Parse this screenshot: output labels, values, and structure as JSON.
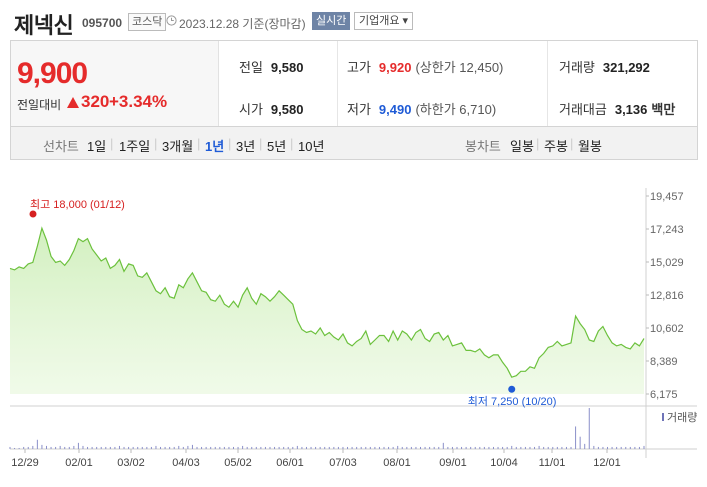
{
  "header": {
    "name": "제넥신",
    "code": "095700",
    "market": "코스닥",
    "date": "2023.12.28 기준(장마감)",
    "realtime_label": "실시간",
    "overview_label": "기업개요 ▾"
  },
  "quote": {
    "price": "9,900",
    "change_label": "전일대비",
    "change_value": "320",
    "change_pct": "+3.34%",
    "prev_close": {
      "label": "전일",
      "value": "9,580"
    },
    "open": {
      "label": "시가",
      "value": "9,580"
    },
    "high": {
      "label": "고가",
      "value": "9,920",
      "sub": "(상한가 12,450)"
    },
    "low": {
      "label": "저가",
      "value": "9,490",
      "sub": "(하한가 6,710)"
    },
    "volume": {
      "label": "거래량",
      "value": "321,292"
    },
    "amount": {
      "label": "거래대금",
      "value": "3,136",
      "unit": "백만"
    },
    "up_color": "#e52b2b",
    "down_color": "#1f5bd6"
  },
  "period": {
    "line_caption": "선차트",
    "line_options": [
      "1일",
      "1주일",
      "3개월",
      "1년",
      "3년",
      "5년",
      "10년"
    ],
    "active": "1년",
    "candle_caption": "봉차트",
    "candle_options": [
      "일봉",
      "주봉",
      "월봉"
    ]
  },
  "chart_data": {
    "type": "area",
    "y_ticks": [
      "19,457",
      "17,243",
      "15,029",
      "12,816",
      "10,602",
      "8,389",
      "6,175"
    ],
    "ylim": [
      6175,
      19457
    ],
    "x_ticks": [
      "12/29",
      "02/01",
      "03/02",
      "04/03",
      "05/02",
      "06/01",
      "07/03",
      "08/01",
      "09/01",
      "10/04",
      "11/01",
      "12/01"
    ],
    "high_label": "최고 18,000 (01/12)",
    "low_label": "최저 7,250 (10/20)",
    "volume_label": "거래량",
    "line_color": "#6cc13d",
    "fill_color": "#e6f7da",
    "values": [
      14600,
      14500,
      14700,
      14600,
      14900,
      15000,
      16100,
      17300,
      16500,
      15400,
      15000,
      15100,
      14800,
      15200,
      15800,
      16600,
      16400,
      16600,
      15900,
      15500,
      15100,
      15300,
      14600,
      14800,
      15200,
      14400,
      14900,
      14800,
      14100,
      14000,
      14300,
      13700,
      13100,
      12900,
      13300,
      12700,
      12600,
      13500,
      13300,
      13900,
      14300,
      13700,
      13100,
      13000,
      12500,
      12400,
      12800,
      12200,
      12000,
      12400,
      12000,
      12800,
      13300,
      12600,
      12200,
      12900,
      12700,
      12400,
      12700,
      13100,
      12800,
      12500,
      12200,
      11100,
      10500,
      10300,
      10400,
      10200,
      10600,
      10100,
      10300,
      10000,
      9800,
      10200,
      9600,
      9400,
      9700,
      9900,
      10400,
      9500,
      9800,
      10100,
      10100,
      9700,
      10400,
      9800,
      10400,
      10200,
      9800,
      10300,
      10500,
      9900,
      9700,
      10200,
      10300,
      9800,
      10100,
      9400,
      9500,
      9600,
      9100,
      9100,
      9000,
      9200,
      8800,
      8600,
      8800,
      8800,
      8300,
      7900,
      7300,
      7400,
      7700,
      7700,
      8000,
      7900,
      8600,
      8900,
      9300,
      9400,
      9700,
      9400,
      9500,
      9600,
      11400,
      10900,
      10500,
      9800,
      9700,
      10400,
      10700,
      10100,
      9600,
      9400,
      9500,
      9300,
      9200,
      9600,
      9400,
      9900
    ],
    "volumes": [
      2,
      1,
      1,
      2,
      2,
      3,
      9,
      4,
      3,
      2,
      2,
      3,
      2,
      2,
      3,
      6,
      3,
      2,
      2,
      2,
      2,
      2,
      2,
      2,
      3,
      2,
      2,
      2,
      2,
      2,
      2,
      2,
      3,
      2,
      2,
      2,
      2,
      3,
      2,
      3,
      4,
      2,
      2,
      2,
      2,
      2,
      2,
      2,
      2,
      2,
      2,
      3,
      2,
      2,
      2,
      2,
      2,
      2,
      2,
      2,
      2,
      2,
      2,
      3,
      2,
      2,
      2,
      2,
      2,
      2,
      2,
      2,
      2,
      2,
      2,
      2,
      2,
      2,
      2,
      2,
      2,
      2,
      2,
      2,
      2,
      3,
      2,
      2,
      2,
      2,
      2,
      2,
      2,
      2,
      2,
      6,
      2,
      2,
      2,
      2,
      2,
      2,
      2,
      2,
      2,
      2,
      2,
      2,
      2,
      2,
      3,
      2,
      2,
      2,
      2,
      2,
      3,
      2,
      2,
      2,
      2,
      2,
      2,
      2,
      22,
      12,
      5,
      40,
      3,
      2,
      2,
      2,
      2,
      2,
      2,
      2,
      2,
      2,
      2,
      3
    ]
  }
}
